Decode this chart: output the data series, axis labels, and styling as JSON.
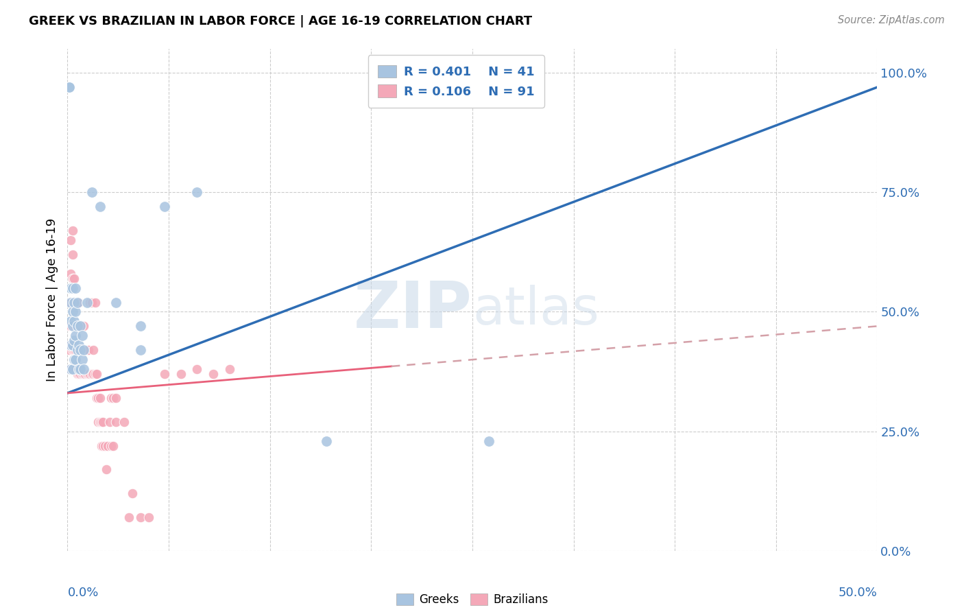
{
  "title": "GREEK VS BRAZILIAN IN LABOR FORCE | AGE 16-19 CORRELATION CHART",
  "source": "Source: ZipAtlas.com",
  "ylabel": "In Labor Force | Age 16-19",
  "ytick_labels": [
    "0.0%",
    "25.0%",
    "50.0%",
    "75.0%",
    "100.0%"
  ],
  "ytick_values": [
    0.0,
    0.25,
    0.5,
    0.75,
    1.0
  ],
  "xlim": [
    0.0,
    0.5
  ],
  "ylim": [
    0.0,
    1.05
  ],
  "watermark_text": "ZIPatlas",
  "blue_color": "#A8C4E0",
  "pink_color": "#F4A8B8",
  "trendline_blue_color": "#2E6DB4",
  "trendline_pink_color": "#E8607A",
  "trendline_pink_dashed_color": "#D4A0A8",
  "legend_text_color": "#2E6DB4",
  "ytick_color": "#2E6DB4",
  "xtick_color": "#2E6DB4",
  "blue_scatter": [
    [
      0.001,
      0.97
    ],
    [
      0.001,
      0.97
    ],
    [
      0.002,
      0.38
    ],
    [
      0.002,
      0.43
    ],
    [
      0.002,
      0.48
    ],
    [
      0.002,
      0.52
    ],
    [
      0.002,
      0.55
    ],
    [
      0.003,
      0.38
    ],
    [
      0.003,
      0.43
    ],
    [
      0.003,
      0.47
    ],
    [
      0.003,
      0.5
    ],
    [
      0.003,
      0.55
    ],
    [
      0.004,
      0.4
    ],
    [
      0.004,
      0.44
    ],
    [
      0.004,
      0.48
    ],
    [
      0.004,
      0.52
    ],
    [
      0.005,
      0.4
    ],
    [
      0.005,
      0.45
    ],
    [
      0.005,
      0.5
    ],
    [
      0.005,
      0.55
    ],
    [
      0.006,
      0.42
    ],
    [
      0.006,
      0.47
    ],
    [
      0.006,
      0.52
    ],
    [
      0.007,
      0.38
    ],
    [
      0.007,
      0.43
    ],
    [
      0.008,
      0.38
    ],
    [
      0.008,
      0.42
    ],
    [
      0.008,
      0.47
    ],
    [
      0.009,
      0.4
    ],
    [
      0.009,
      0.45
    ],
    [
      0.01,
      0.38
    ],
    [
      0.01,
      0.42
    ],
    [
      0.012,
      0.52
    ],
    [
      0.015,
      0.75
    ],
    [
      0.02,
      0.72
    ],
    [
      0.03,
      0.52
    ],
    [
      0.045,
      0.42
    ],
    [
      0.045,
      0.47
    ],
    [
      0.06,
      0.72
    ],
    [
      0.08,
      0.75
    ],
    [
      0.16,
      0.23
    ],
    [
      0.26,
      0.23
    ]
  ],
  "pink_scatter": [
    [
      0.001,
      0.38
    ],
    [
      0.001,
      0.42
    ],
    [
      0.001,
      0.47
    ],
    [
      0.002,
      0.38
    ],
    [
      0.002,
      0.43
    ],
    [
      0.002,
      0.47
    ],
    [
      0.002,
      0.52
    ],
    [
      0.002,
      0.58
    ],
    [
      0.002,
      0.65
    ],
    [
      0.003,
      0.38
    ],
    [
      0.003,
      0.42
    ],
    [
      0.003,
      0.47
    ],
    [
      0.003,
      0.52
    ],
    [
      0.003,
      0.57
    ],
    [
      0.003,
      0.62
    ],
    [
      0.003,
      0.67
    ],
    [
      0.004,
      0.38
    ],
    [
      0.004,
      0.42
    ],
    [
      0.004,
      0.47
    ],
    [
      0.004,
      0.52
    ],
    [
      0.004,
      0.57
    ],
    [
      0.005,
      0.38
    ],
    [
      0.005,
      0.42
    ],
    [
      0.005,
      0.47
    ],
    [
      0.005,
      0.52
    ],
    [
      0.006,
      0.37
    ],
    [
      0.006,
      0.42
    ],
    [
      0.006,
      0.47
    ],
    [
      0.007,
      0.37
    ],
    [
      0.007,
      0.42
    ],
    [
      0.007,
      0.47
    ],
    [
      0.007,
      0.52
    ],
    [
      0.008,
      0.37
    ],
    [
      0.008,
      0.42
    ],
    [
      0.008,
      0.47
    ],
    [
      0.009,
      0.37
    ],
    [
      0.009,
      0.42
    ],
    [
      0.01,
      0.37
    ],
    [
      0.01,
      0.42
    ],
    [
      0.01,
      0.47
    ],
    [
      0.011,
      0.37
    ],
    [
      0.011,
      0.42
    ],
    [
      0.012,
      0.37
    ],
    [
      0.012,
      0.42
    ],
    [
      0.013,
      0.37
    ],
    [
      0.013,
      0.42
    ],
    [
      0.014,
      0.37
    ],
    [
      0.014,
      0.52
    ],
    [
      0.015,
      0.37
    ],
    [
      0.015,
      0.52
    ],
    [
      0.016,
      0.37
    ],
    [
      0.016,
      0.42
    ],
    [
      0.017,
      0.37
    ],
    [
      0.017,
      0.52
    ],
    [
      0.018,
      0.37
    ],
    [
      0.018,
      0.32
    ],
    [
      0.019,
      0.27
    ],
    [
      0.019,
      0.32
    ],
    [
      0.02,
      0.27
    ],
    [
      0.02,
      0.32
    ],
    [
      0.021,
      0.22
    ],
    [
      0.021,
      0.27
    ],
    [
      0.022,
      0.22
    ],
    [
      0.022,
      0.27
    ],
    [
      0.023,
      0.22
    ],
    [
      0.024,
      0.17
    ],
    [
      0.025,
      0.22
    ],
    [
      0.026,
      0.27
    ],
    [
      0.027,
      0.22
    ],
    [
      0.027,
      0.32
    ],
    [
      0.028,
      0.22
    ],
    [
      0.028,
      0.32
    ],
    [
      0.03,
      0.27
    ],
    [
      0.03,
      0.32
    ],
    [
      0.035,
      0.27
    ],
    [
      0.038,
      0.07
    ],
    [
      0.04,
      0.12
    ],
    [
      0.045,
      0.07
    ],
    [
      0.05,
      0.07
    ],
    [
      0.06,
      0.37
    ],
    [
      0.07,
      0.37
    ],
    [
      0.08,
      0.38
    ],
    [
      0.09,
      0.37
    ],
    [
      0.1,
      0.38
    ]
  ],
  "blue_trendline": [
    [
      0.0,
      0.33
    ],
    [
      0.5,
      0.97
    ]
  ],
  "pink_trendline_solid_end_x": 0.2,
  "pink_trendline": [
    [
      0.0,
      0.33
    ],
    [
      0.5,
      0.47
    ]
  ]
}
